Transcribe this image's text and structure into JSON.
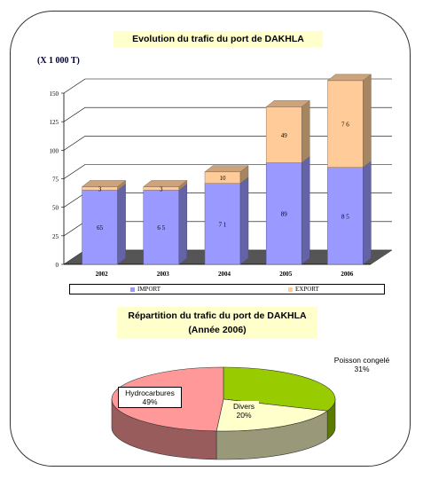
{
  "bar_chart": {
    "title": "Evolution du trafic du port de DAKHLA",
    "unit": "(X 1 000 T)"
  },
  "pie_chart": {
    "title_line1": "Répartition du trafic du port de DAKHLA",
    "title_line2": "(Année 2006)"
  },
  "colors": {
    "import": "#9999ff",
    "export": "#ffcc99",
    "hydrocarbures": "#ff9999",
    "divers": "#ffffcc",
    "poisson": "#99cc00"
  },
  "chart_data": [
    {
      "type": "bar",
      "stacked": true,
      "title": "Evolution du trafic du port de DAKHLA",
      "ylabel": "(X 1 000 T)",
      "ylim": [
        0,
        150
      ],
      "yticks": [
        0,
        25,
        50,
        75,
        100,
        125,
        150
      ],
      "grid": true,
      "legend_position": "bottom",
      "categories": [
        "2002",
        "2003",
        "2004",
        "2005",
        "2006"
      ],
      "series": [
        {
          "name": "IMPORT",
          "values": [
            65,
            65,
            71,
            89,
            85
          ],
          "labels": [
            "65",
            "6 5",
            "7 1",
            "89",
            "8 5"
          ]
        },
        {
          "name": "EXPORT",
          "values": [
            3,
            3,
            10,
            49,
            76
          ],
          "labels": [
            "3",
            "3",
            "10",
            "49",
            "7 6"
          ]
        }
      ]
    },
    {
      "type": "pie",
      "title": "Répartition du trafic du port de DAKHLA (Année 2006)",
      "slices": [
        {
          "name": "Hydrocarbures",
          "value": 49,
          "label": "49%"
        },
        {
          "name": "Divers",
          "value": 20,
          "label": "20%"
        },
        {
          "name": "Poisson congelé",
          "value": 31,
          "label": "31%"
        }
      ]
    }
  ]
}
